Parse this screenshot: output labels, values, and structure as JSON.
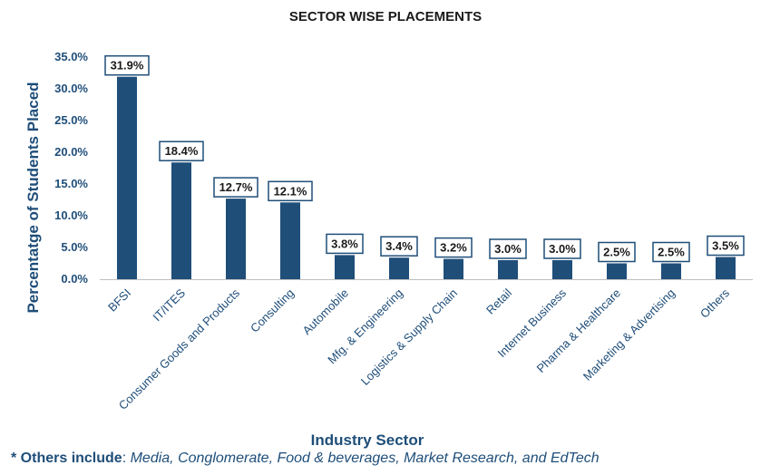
{
  "chart_data": {
    "type": "bar",
    "title": "SECTOR WISE PLACEMENTS",
    "xlabel": "Industry Sector",
    "ylabel": "Percentatge of Students Placed",
    "categories": [
      "BFSI",
      "IT/ITES",
      "Consumer Goods and Products",
      "Consulting",
      "Automobile",
      "Mfg. & Engineering",
      "Logistics & Supply Chain",
      "Retail",
      "Internet Business",
      "Pharma & Healthcare",
      "Marketing & Advertising",
      "Others"
    ],
    "values": [
      31.9,
      18.4,
      12.7,
      12.1,
      3.8,
      3.4,
      3.2,
      3.0,
      3.0,
      2.5,
      2.5,
      3.5
    ],
    "data_labels": [
      "31.9%",
      "18.4%",
      "12.7%",
      "12.1%",
      "3.8%",
      "3.4%",
      "3.2%",
      "3.0%",
      "3.0%",
      "2.5%",
      "2.5%",
      "3.5%"
    ],
    "ylim": [
      0,
      35
    ],
    "yticks": [
      0,
      5,
      10,
      15,
      20,
      25,
      30,
      35
    ],
    "ytick_labels": [
      "0.0%",
      "5.0%",
      "10.0%",
      "15.0%",
      "20.0%",
      "25.0%",
      "30.0%",
      "35.0%"
    ],
    "grid": false,
    "legend": "none",
    "bar_color": "#1f4e79"
  },
  "footnote": {
    "label": "* Others include",
    "separator": ": ",
    "text": "Media, Conglomerate, Food & beverages, Market Research, and EdTech"
  }
}
